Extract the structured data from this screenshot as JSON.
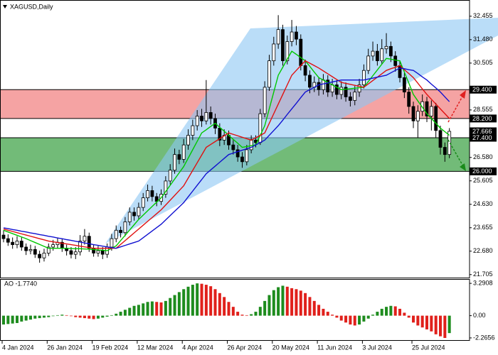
{
  "chart_data": [
    {
      "type": "candlestick",
      "title": "XAGUSD,Daily",
      "categories": [
        "4 Jan 2024",
        null,
        null,
        null,
        null,
        null,
        null,
        null,
        null,
        null,
        "26 Jan 2024",
        null,
        null,
        null,
        null,
        null,
        null,
        null,
        null,
        null,
        "19 Feb 2024",
        null,
        null,
        null,
        null,
        null,
        null,
        null,
        null,
        null,
        "12 Mar 2024",
        null,
        null,
        null,
        null,
        null,
        null,
        null,
        null,
        null,
        "4 Apr 2024",
        null,
        null,
        null,
        null,
        null,
        null,
        null,
        null,
        null,
        "26 Apr 2024",
        null,
        null,
        null,
        null,
        null,
        null,
        null,
        null,
        null,
        "20 May 2024",
        null,
        null,
        null,
        null,
        null,
        null,
        null,
        null,
        null,
        "11 Jun 2024",
        null,
        null,
        null,
        null,
        null,
        null,
        null,
        null,
        null,
        "3 Jul 2024",
        null,
        null,
        null,
        null,
        null,
        null,
        null,
        null,
        null,
        null,
        "25 Jul 2024",
        null,
        null,
        null,
        null,
        null,
        null,
        null,
        null
      ],
      "open": [
        23.35,
        23.2,
        23.05,
        22.95,
        23.1,
        22.85,
        22.7,
        22.75,
        22.55,
        22.4,
        22.6,
        22.85,
        22.95,
        23.05,
        22.8,
        22.7,
        22.55,
        22.65,
        23.1,
        23.3,
        22.8,
        22.6,
        22.7,
        22.55,
        22.85,
        23.2,
        23.55,
        23.45,
        23.9,
        24.3,
        24.15,
        24.5,
        24.9,
        25.2,
        24.95,
        24.75,
        25.05,
        25.6,
        26.05,
        26.7,
        26.5,
        27.1,
        27.5,
        27.9,
        28.3,
        28.1,
        28.45,
        28.2,
        27.8,
        27.3,
        27.5,
        27.1,
        26.9,
        26.6,
        26.4,
        26.9,
        27.3,
        27.2,
        28.4,
        29.5,
        30.6,
        31.3,
        31.9,
        30.6,
        31.4,
        31.8,
        31.5,
        30.4,
        30.0,
        29.5,
        29.7,
        29.4,
        29.8,
        29.3,
        29.6,
        29.2,
        29.5,
        29.1,
        28.95,
        29.3,
        29.6,
        30.2,
        30.8,
        31.0,
        30.6,
        31.1,
        31.2,
        30.8,
        30.4,
        29.9,
        29.3,
        28.7,
        28.1,
        28.5,
        28.9,
        28.3,
        28.7,
        27.7,
        27.0,
        26.7
      ],
      "high": [
        23.55,
        23.38,
        23.25,
        23.3,
        23.25,
        23.0,
        22.95,
        22.9,
        22.7,
        22.78,
        23.0,
        23.15,
        23.25,
        23.2,
        22.95,
        22.85,
        22.85,
        23.35,
        23.6,
        23.45,
        22.95,
        22.9,
        22.85,
        23.0,
        23.4,
        23.75,
        23.7,
        24.1,
        24.5,
        24.5,
        24.7,
        25.1,
        25.45,
        25.4,
        25.1,
        25.25,
        25.8,
        26.3,
        26.95,
        26.9,
        27.35,
        27.75,
        28.15,
        28.55,
        28.6,
        29.8,
        28.7,
        28.4,
        28.0,
        27.75,
        27.7,
        27.3,
        27.1,
        26.8,
        27.1,
        27.5,
        27.5,
        28.6,
        29.75,
        30.85,
        31.6,
        32.5,
        32.1,
        31.65,
        32.3,
        32.05,
        31.7,
        30.65,
        30.2,
        29.95,
        29.9,
        30.05,
        30.0,
        29.85,
        29.8,
        29.75,
        29.7,
        29.3,
        29.55,
        29.85,
        30.45,
        31.1,
        31.4,
        31.3,
        31.5,
        31.75,
        31.4,
        31.0,
        30.6,
        30.1,
        29.5,
        28.9,
        28.75,
        29.2,
        29.1,
        28.95,
        28.85,
        27.9,
        27.2,
        27.8
      ],
      "low": [
        23.05,
        22.9,
        22.78,
        22.8,
        22.7,
        22.52,
        22.55,
        22.4,
        22.2,
        22.25,
        22.48,
        22.7,
        22.8,
        22.65,
        22.5,
        22.38,
        22.35,
        22.5,
        22.95,
        22.65,
        22.45,
        22.45,
        22.35,
        22.4,
        22.7,
        23.05,
        23.25,
        23.3,
        23.75,
        23.95,
        24.0,
        24.35,
        24.75,
        24.75,
        24.55,
        24.6,
        24.9,
        25.45,
        25.9,
        26.3,
        26.35,
        26.9,
        27.3,
        27.7,
        27.85,
        27.95,
        27.95,
        27.55,
        27.05,
        27.1,
        26.9,
        26.7,
        26.4,
        26.15,
        26.25,
        26.75,
        27.0,
        27.1,
        28.25,
        29.35,
        30.4,
        31.1,
        30.4,
        30.45,
        31.2,
        31.25,
        30.2,
        29.75,
        29.25,
        29.3,
        29.15,
        29.2,
        29.1,
        29.1,
        29.0,
        29.0,
        28.9,
        28.7,
        28.75,
        29.1,
        29.45,
        30.05,
        30.6,
        30.4,
        30.45,
        30.9,
        30.55,
        30.15,
        29.7,
        29.05,
        28.4,
        27.8,
        27.4,
        28.3,
        28.05,
        27.7,
        27.4,
        26.7,
        26.4,
        26.55
      ],
      "close": [
        23.2,
        23.05,
        22.95,
        23.1,
        22.85,
        22.7,
        22.75,
        22.55,
        22.4,
        22.6,
        22.85,
        22.95,
        23.05,
        22.8,
        22.7,
        22.55,
        22.65,
        23.1,
        23.3,
        22.8,
        22.6,
        22.7,
        22.55,
        22.85,
        23.2,
        23.55,
        23.45,
        23.9,
        24.3,
        24.15,
        24.5,
        24.9,
        25.2,
        24.95,
        24.75,
        25.05,
        25.6,
        26.05,
        26.7,
        26.5,
        27.1,
        27.5,
        27.9,
        28.3,
        28.1,
        28.45,
        28.2,
        27.8,
        27.3,
        27.5,
        27.1,
        26.9,
        26.6,
        26.4,
        26.9,
        27.3,
        27.2,
        28.4,
        29.5,
        30.6,
        31.3,
        31.9,
        30.6,
        31.4,
        31.8,
        31.5,
        30.4,
        30.0,
        29.5,
        29.7,
        29.4,
        29.8,
        29.3,
        29.6,
        29.2,
        29.5,
        29.1,
        28.95,
        29.3,
        29.6,
        30.2,
        30.8,
        31.0,
        30.6,
        31.1,
        31.2,
        30.8,
        30.4,
        29.9,
        29.3,
        28.7,
        28.1,
        28.5,
        28.9,
        28.3,
        28.7,
        27.7,
        27.0,
        26.7,
        27.666
      ],
      "up_color": "#ffffff",
      "down_color": "#000000",
      "series": [
        {
          "color": "#00c800",
          "values": [
            23.55,
            23.48,
            23.41,
            23.34,
            23.27,
            23.2,
            23.12,
            23.04,
            22.96,
            22.88,
            22.8,
            22.8,
            22.8,
            22.8,
            22.8,
            22.79,
            22.78,
            22.78,
            22.77,
            22.76,
            22.75,
            22.73,
            22.72,
            22.7,
            22.8,
            22.9,
            23.12,
            23.34,
            23.56,
            23.78,
            24.0,
            24.18,
            24.36,
            24.54,
            24.72,
            24.9,
            25.16,
            25.42,
            25.68,
            25.94,
            26.2,
            26.55,
            26.9,
            27.25,
            27.6,
            27.73,
            27.87,
            28.0,
            27.83,
            27.67,
            27.5,
            27.33,
            27.17,
            27.0,
            27.03,
            27.07,
            27.1,
            27.5,
            27.9,
            28.6,
            29.3,
            30.0,
            30.33,
            30.67,
            31.0,
            30.87,
            30.73,
            30.6,
            30.37,
            30.13,
            29.9,
            29.8,
            29.7,
            29.6,
            29.5,
            29.4,
            29.42,
            29.44,
            29.46,
            29.48,
            29.5,
            29.74,
            29.98,
            30.22,
            30.46,
            30.7,
            30.67,
            30.63,
            30.6,
            30.13,
            29.67,
            29.2,
            28.93,
            28.67,
            28.4,
            28.2,
            28.0,
            27.8,
            27.65,
            27.5
          ]
        },
        {
          "color": "#e01010",
          "values": [
            23.6,
            23.55,
            23.5,
            23.45,
            23.4,
            23.35,
            23.3,
            23.25,
            23.2,
            23.15,
            23.1,
            23.07,
            23.04,
            23.01,
            22.98,
            22.95,
            22.92,
            22.89,
            22.86,
            22.83,
            22.8,
            22.8,
            22.8,
            22.8,
            22.8,
            22.8,
            22.96,
            23.12,
            23.28,
            23.44,
            23.6,
            23.76,
            23.92,
            24.08,
            24.24,
            24.4,
            24.6,
            24.8,
            25.0,
            25.2,
            25.4,
            25.72,
            26.04,
            26.36,
            26.68,
            27.0,
            27.12,
            27.24,
            27.36,
            27.48,
            27.6,
            27.54,
            27.48,
            27.42,
            27.36,
            27.3,
            27.4,
            27.5,
            27.6,
            28.0,
            28.4,
            28.8,
            29.2,
            29.6,
            30.0,
            30.2,
            30.4,
            30.6,
            30.5,
            30.4,
            30.3,
            30.18,
            30.06,
            29.94,
            29.82,
            29.7,
            29.66,
            29.62,
            29.58,
            29.54,
            29.5,
            29.64,
            29.78,
            29.92,
            30.06,
            30.2,
            30.27,
            30.33,
            30.4,
            30.23,
            30.07,
            29.9,
            29.67,
            29.43,
            29.2,
            29.0,
            28.8,
            28.6,
            28.4,
            28.2
          ]
        },
        {
          "color": "#1010d0",
          "values": [
            23.65,
            23.62,
            23.58,
            23.55,
            23.51,
            23.48,
            23.44,
            23.41,
            23.37,
            23.34,
            23.3,
            23.27,
            23.23,
            23.2,
            23.16,
            23.13,
            23.09,
            23.06,
            23.02,
            22.99,
            22.95,
            22.92,
            22.89,
            22.86,
            22.83,
            22.8,
            22.86,
            22.92,
            22.98,
            23.04,
            23.1,
            23.24,
            23.38,
            23.52,
            23.66,
            23.8,
            23.98,
            24.16,
            24.34,
            24.52,
            24.7,
            24.94,
            25.18,
            25.42,
            25.66,
            25.9,
            26.06,
            26.22,
            26.38,
            26.54,
            26.7,
            26.76,
            26.82,
            26.88,
            26.94,
            27.0,
            27.1,
            27.2,
            27.3,
            27.5,
            27.7,
            27.9,
            28.13,
            28.37,
            28.6,
            28.83,
            29.07,
            29.3,
            29.4,
            29.5,
            29.6,
            29.64,
            29.68,
            29.72,
            29.76,
            29.8,
            29.8,
            29.8,
            29.8,
            29.8,
            29.8,
            29.84,
            29.88,
            29.92,
            29.96,
            30.0,
            30.1,
            30.2,
            30.3,
            30.27,
            30.23,
            30.2,
            30.07,
            29.93,
            29.8,
            29.63,
            29.47,
            29.3,
            29.1,
            28.9
          ]
        }
      ],
      "zones": [
        {
          "color": "#f5a3a3",
          "top": {
            "value": 29.4,
            "label": "29.400"
          },
          "bottom": {
            "value": 28.2,
            "label": "28.200"
          }
        },
        {
          "color": "#72bb78",
          "top": {
            "value": 27.4,
            "label": "27.400"
          },
          "bottom": {
            "value": 26.0,
            "label": "26.000"
          }
        }
      ],
      "last_price": {
        "value": 27.666,
        "label": "27.666"
      },
      "ylim": [
        21.55,
        33.13
      ],
      "yticks": [
        32.455,
        {
          "value": 31.48,
          "label": "31.480"
        },
        30.505,
        28.555,
        {
          "value": 26.58,
          "label": "26.580"
        },
        25.605,
        {
          "value": 24.63,
          "label": "24.630"
        },
        23.655,
        {
          "value": 22.68,
          "label": "22.680"
        },
        21.705
      ]
    },
    {
      "type": "histogram",
      "title": "AO -1.7740",
      "values": [
        -0.9,
        -0.85,
        -0.8,
        -0.75,
        -0.6,
        -0.5,
        -0.4,
        -0.3,
        -0.25,
        -0.2,
        -0.15,
        -0.05,
        0.05,
        0.1,
        0.05,
        -0.05,
        -0.15,
        -0.2,
        -0.25,
        -0.3,
        -0.35,
        -0.3,
        -0.2,
        -0.1,
        0.05,
        0.2,
        0.4,
        0.6,
        0.8,
        1.0,
        1.1,
        1.25,
        1.4,
        1.45,
        1.4,
        1.35,
        1.5,
        1.8,
        2.1,
        2.4,
        2.7,
        2.95,
        3.15,
        3.29,
        3.25,
        3.15,
        3.0,
        2.7,
        2.3,
        1.9,
        1.4,
        0.9,
        0.4,
        0.1,
        0.05,
        0.15,
        0.4,
        0.9,
        1.5,
        2.1,
        2.6,
        2.9,
        3.05,
        2.95,
        2.8,
        2.7,
        2.55,
        2.3,
        1.9,
        1.5,
        1.1,
        0.7,
        0.4,
        0.1,
        -0.2,
        -0.5,
        -0.7,
        -0.9,
        -1.0,
        -0.9,
        -0.6,
        -0.3,
        0.1,
        0.4,
        0.7,
        0.9,
        1.0,
        0.95,
        0.7,
        0.3,
        -0.2,
        -0.7,
        -1.0,
        -1.2,
        -1.4,
        -1.6,
        -1.9,
        -2.1,
        -2.27,
        -1.774
      ],
      "up_color": "#1e8c1e",
      "down_color": "#e0201b",
      "ylim": [
        -2.56,
        3.66
      ],
      "yticks": [
        3.2908,
        {
          "value": 0,
          "label": "0.00"
        },
        -2.2656
      ]
    }
  ]
}
